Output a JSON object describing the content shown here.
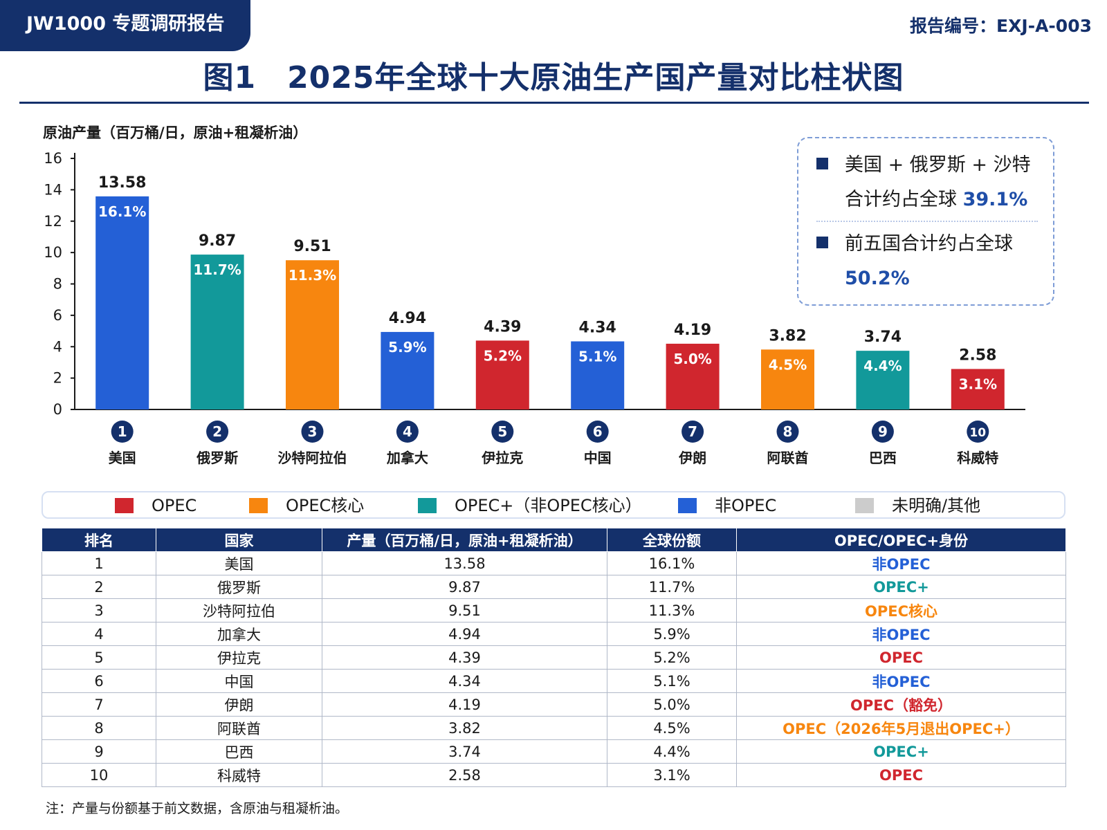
{
  "header": {
    "tag": "JW1000 专题调研报告",
    "report_no": "报告编号：EXJ-A-003",
    "title": "图1　2025年全球十大原油生产国产量对比柱状图"
  },
  "chart_data": {
    "type": "bar",
    "ylabel": "原油产量（百万桶/日，原油+租凝析油）",
    "ylim": [
      0,
      16
    ],
    "yticks": [
      0,
      2,
      4,
      6,
      8,
      10,
      12,
      14,
      16
    ],
    "categories": [
      "美国",
      "俄罗斯",
      "沙特阿拉伯",
      "加拿大",
      "伊拉克",
      "中国",
      "伊朗",
      "阿联酋",
      "巴西",
      "科威特"
    ],
    "ranks": [
      "1",
      "2",
      "3",
      "4",
      "5",
      "6",
      "7",
      "8",
      "9",
      "10"
    ],
    "values": [
      13.58,
      9.87,
      9.51,
      4.94,
      4.39,
      4.34,
      4.19,
      3.82,
      3.74,
      2.58
    ],
    "value_labels": [
      "13.58",
      "9.87",
      "9.51",
      "4.94",
      "4.39",
      "4.34",
      "4.19",
      "3.82",
      "3.74",
      "2.58"
    ],
    "shares": [
      "16.1%",
      "11.7%",
      "11.3%",
      "5.9%",
      "5.2%",
      "5.1%",
      "5.0%",
      "4.5%",
      "4.4%",
      "3.1%"
    ],
    "groups": [
      "非OPEC",
      "OPEC+（非OPEC核心）",
      "OPEC核心",
      "非OPEC",
      "OPEC",
      "非OPEC",
      "OPEC",
      "OPEC核心",
      "OPEC+（非OPEC核心）",
      "OPEC"
    ],
    "grid": false,
    "legend_position": "bottom"
  },
  "colors": {
    "navy": "#14306b",
    "OPEC": "#d0262e",
    "OPEC核心": "#f7860f",
    "OPEC+（非OPEC核心）": "#12999a",
    "非OPEC": "#2460d6",
    "未明确/其他": "#cccccc"
  },
  "infobox": {
    "item1_line1": "美国 + 俄罗斯 + 沙特",
    "item1_line2": "合计约占全球",
    "item1_value": "39.1%",
    "item2_line1": "前五国合计约占全球",
    "item2_value": "50.2%"
  },
  "legend": [
    {
      "label": "OPEC",
      "color": "#d0262e"
    },
    {
      "label": "OPEC核心",
      "color": "#f7860f"
    },
    {
      "label": "OPEC+（非OPEC核心）",
      "color": "#12999a"
    },
    {
      "label": "非OPEC",
      "color": "#2460d6"
    },
    {
      "label": "未明确/其他",
      "color": "#cccccc"
    }
  ],
  "table": {
    "headers": [
      "排名",
      "国家",
      "产量（百万桶/日，原油+租凝析油）",
      "全球份额",
      "OPEC/OPEC+身份"
    ],
    "rows": [
      {
        "rank": "1",
        "country": "美国",
        "output": "13.58",
        "share": "16.1%",
        "identity": "非OPEC",
        "color": "#2460d6"
      },
      {
        "rank": "2",
        "country": "俄罗斯",
        "output": "9.87",
        "share": "11.7%",
        "identity": "OPEC+",
        "color": "#12999a"
      },
      {
        "rank": "3",
        "country": "沙特阿拉伯",
        "output": "9.51",
        "share": "11.3%",
        "identity": "OPEC核心",
        "color": "#f7860f"
      },
      {
        "rank": "4",
        "country": "加拿大",
        "output": "4.94",
        "share": "5.9%",
        "identity": "非OPEC",
        "color": "#2460d6"
      },
      {
        "rank": "5",
        "country": "伊拉克",
        "output": "4.39",
        "share": "5.2%",
        "identity": "OPEC",
        "color": "#d0262e"
      },
      {
        "rank": "6",
        "country": "中国",
        "output": "4.34",
        "share": "5.1%",
        "identity": "非OPEC",
        "color": "#2460d6"
      },
      {
        "rank": "7",
        "country": "伊朗",
        "output": "4.19",
        "share": "5.0%",
        "identity": "OPEC（豁免）",
        "color": "#d0262e"
      },
      {
        "rank": "8",
        "country": "阿联酋",
        "output": "3.82",
        "share": "4.5%",
        "identity": "OPEC（2026年5月退出OPEC+）",
        "color": "#f7860f"
      },
      {
        "rank": "9",
        "country": "巴西",
        "output": "3.74",
        "share": "4.4%",
        "identity": "OPEC+",
        "color": "#12999a"
      },
      {
        "rank": "10",
        "country": "科威特",
        "output": "2.58",
        "share": "3.1%",
        "identity": "OPEC",
        "color": "#d0262e"
      }
    ]
  },
  "note": "注：产量与份额基于前文数据，含原油与租凝析油。"
}
